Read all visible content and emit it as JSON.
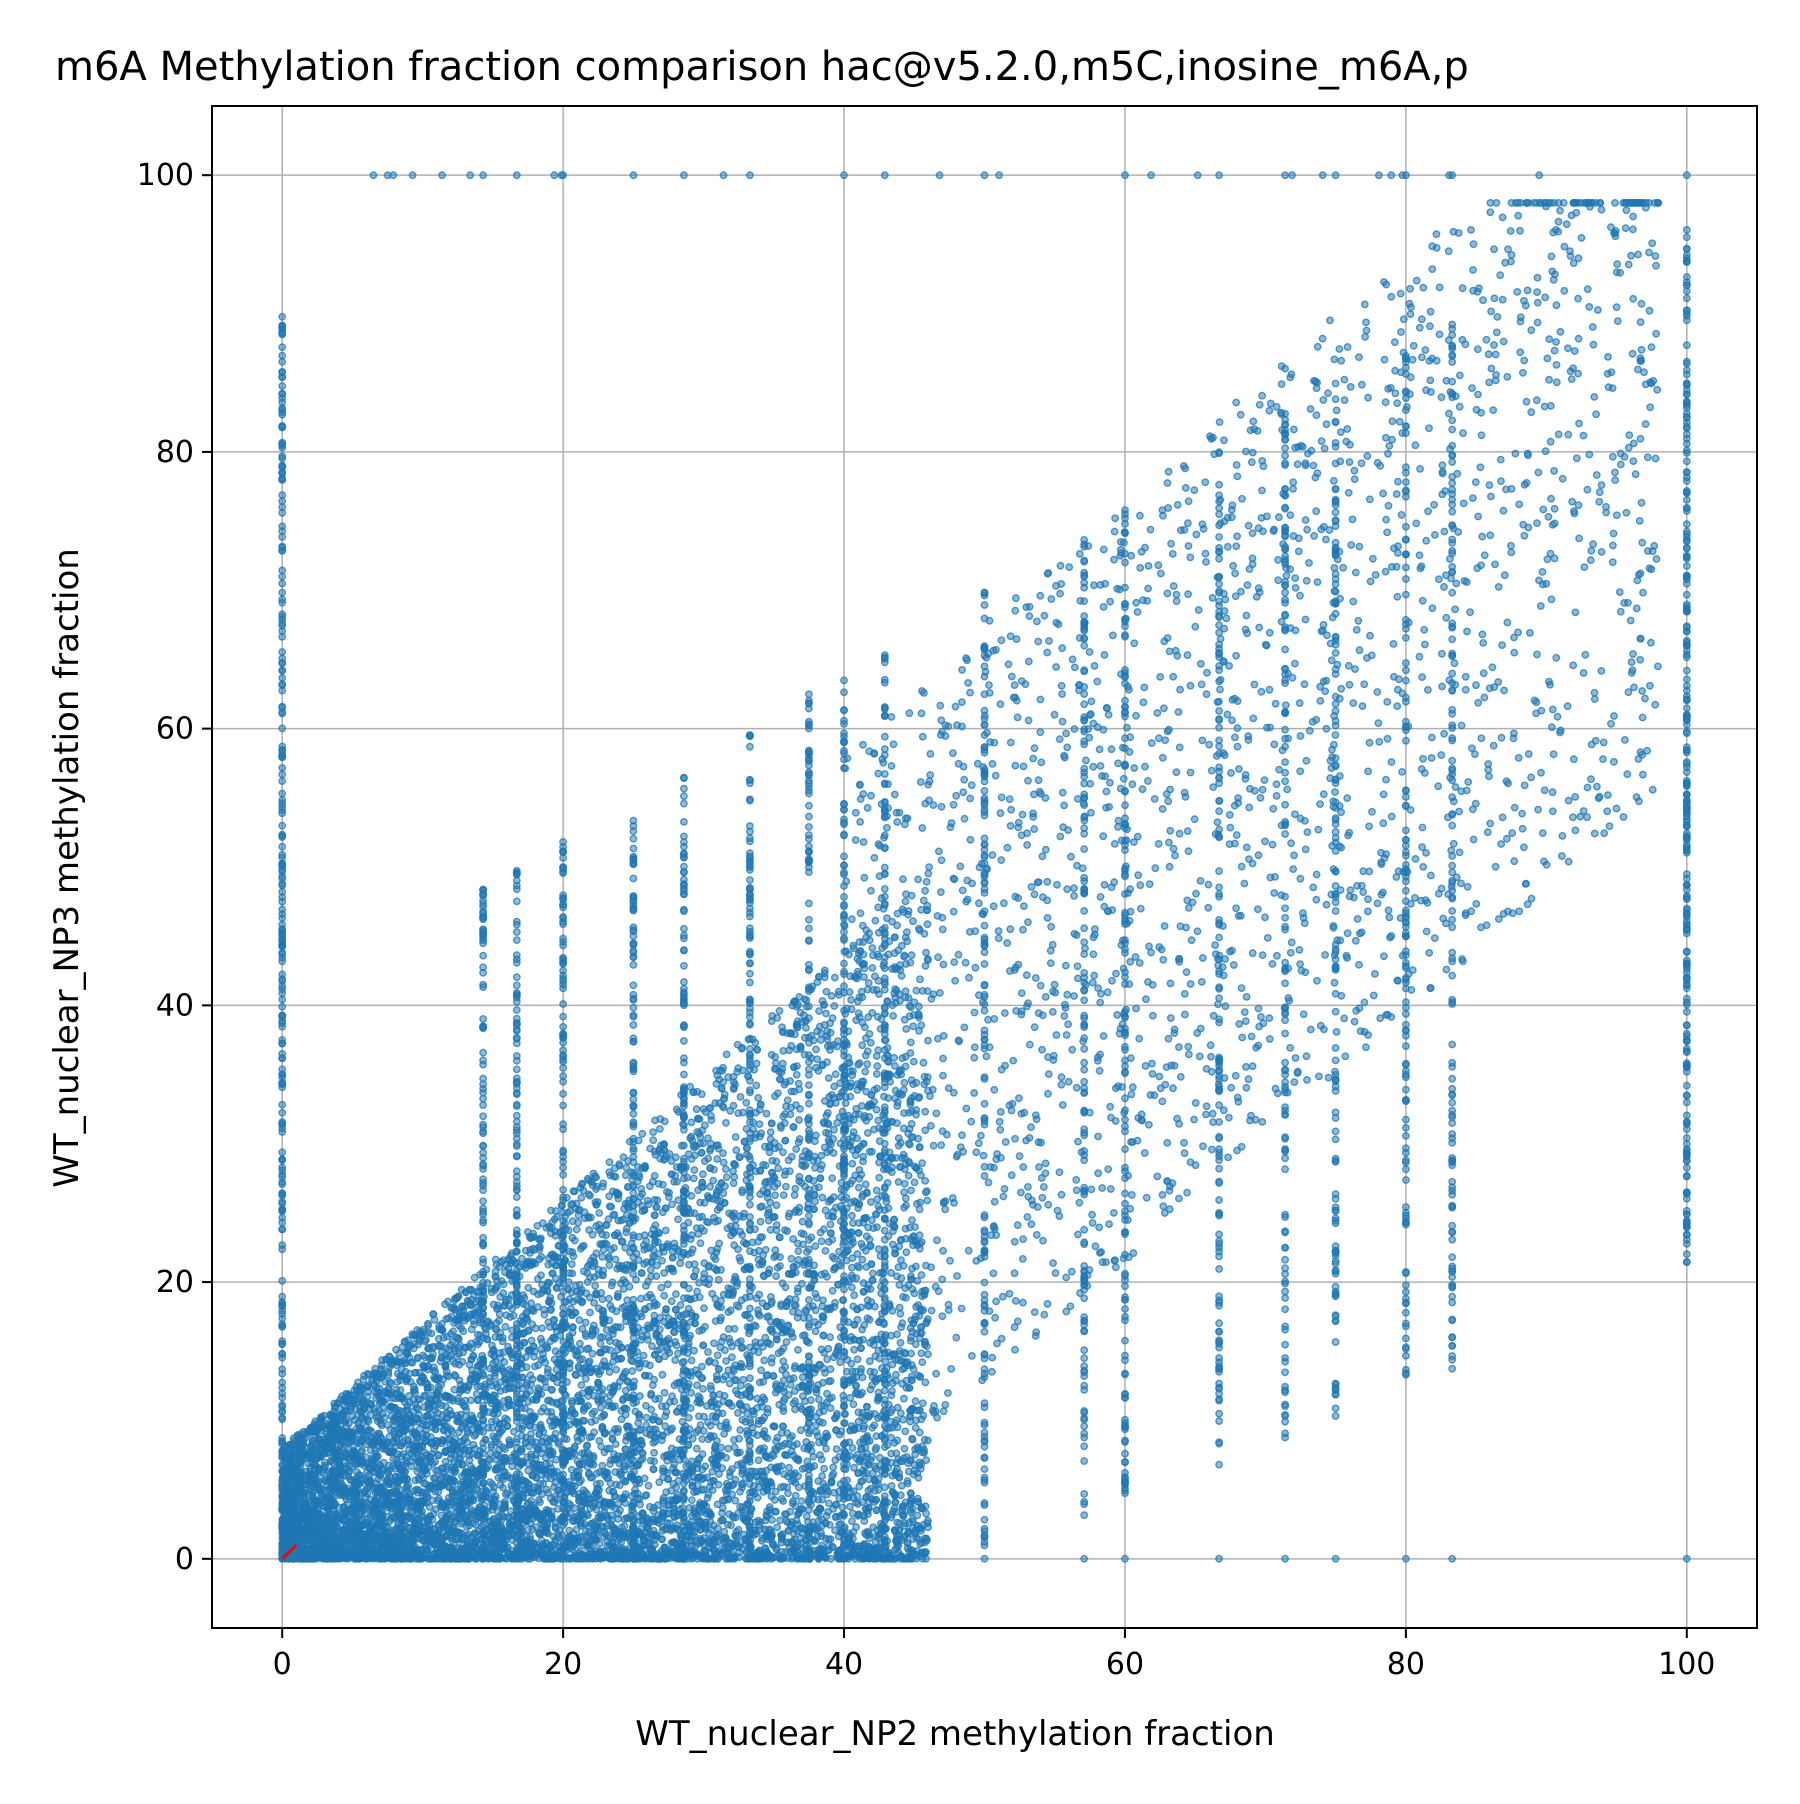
{
  "chart_data": {
    "type": "scatter",
    "title": "m6A Methylation fraction comparison hac@v5.2.0,m5C,inosine_m6A,p",
    "xlabel": "WT_nuclear_NP2 methylation fraction",
    "ylabel": "WT_nuclear_NP3 methylation fraction",
    "xlim": [
      -5,
      105
    ],
    "ylim": [
      -5,
      105
    ],
    "xticks": [
      0,
      20,
      40,
      60,
      80,
      100
    ],
    "yticks": [
      0,
      20,
      40,
      60,
      80,
      100
    ],
    "xtick_labels": [
      "0",
      "20",
      "40",
      "60",
      "80",
      "100"
    ],
    "ytick_labels": [
      "0",
      "20",
      "40",
      "60",
      "80",
      "100"
    ],
    "grid": true,
    "legend": "none",
    "colors": {
      "points": "#1f77b4",
      "reference_line": "#ff0000",
      "grid": "#b0b0b0"
    },
    "point_alpha": 0.5,
    "vertical_stripes_x": [
      0,
      14.3,
      16.7,
      20,
      25,
      28.6,
      33.3,
      37.5,
      40,
      42.9,
      50,
      57.1,
      60,
      66.7,
      71.4,
      75,
      80,
      83.3,
      100
    ],
    "reference_line": {
      "x": [
        0,
        1
      ],
      "y": [
        0,
        1
      ]
    },
    "summary": {
      "dense_region": "x 0–45, y 0–45 (bulk of points)",
      "trend": "positive correlation, sparse points extending to upper right (x 50–100, y 40–100)",
      "edge_rows": "points on y=0 and y=100 lines"
    }
  }
}
